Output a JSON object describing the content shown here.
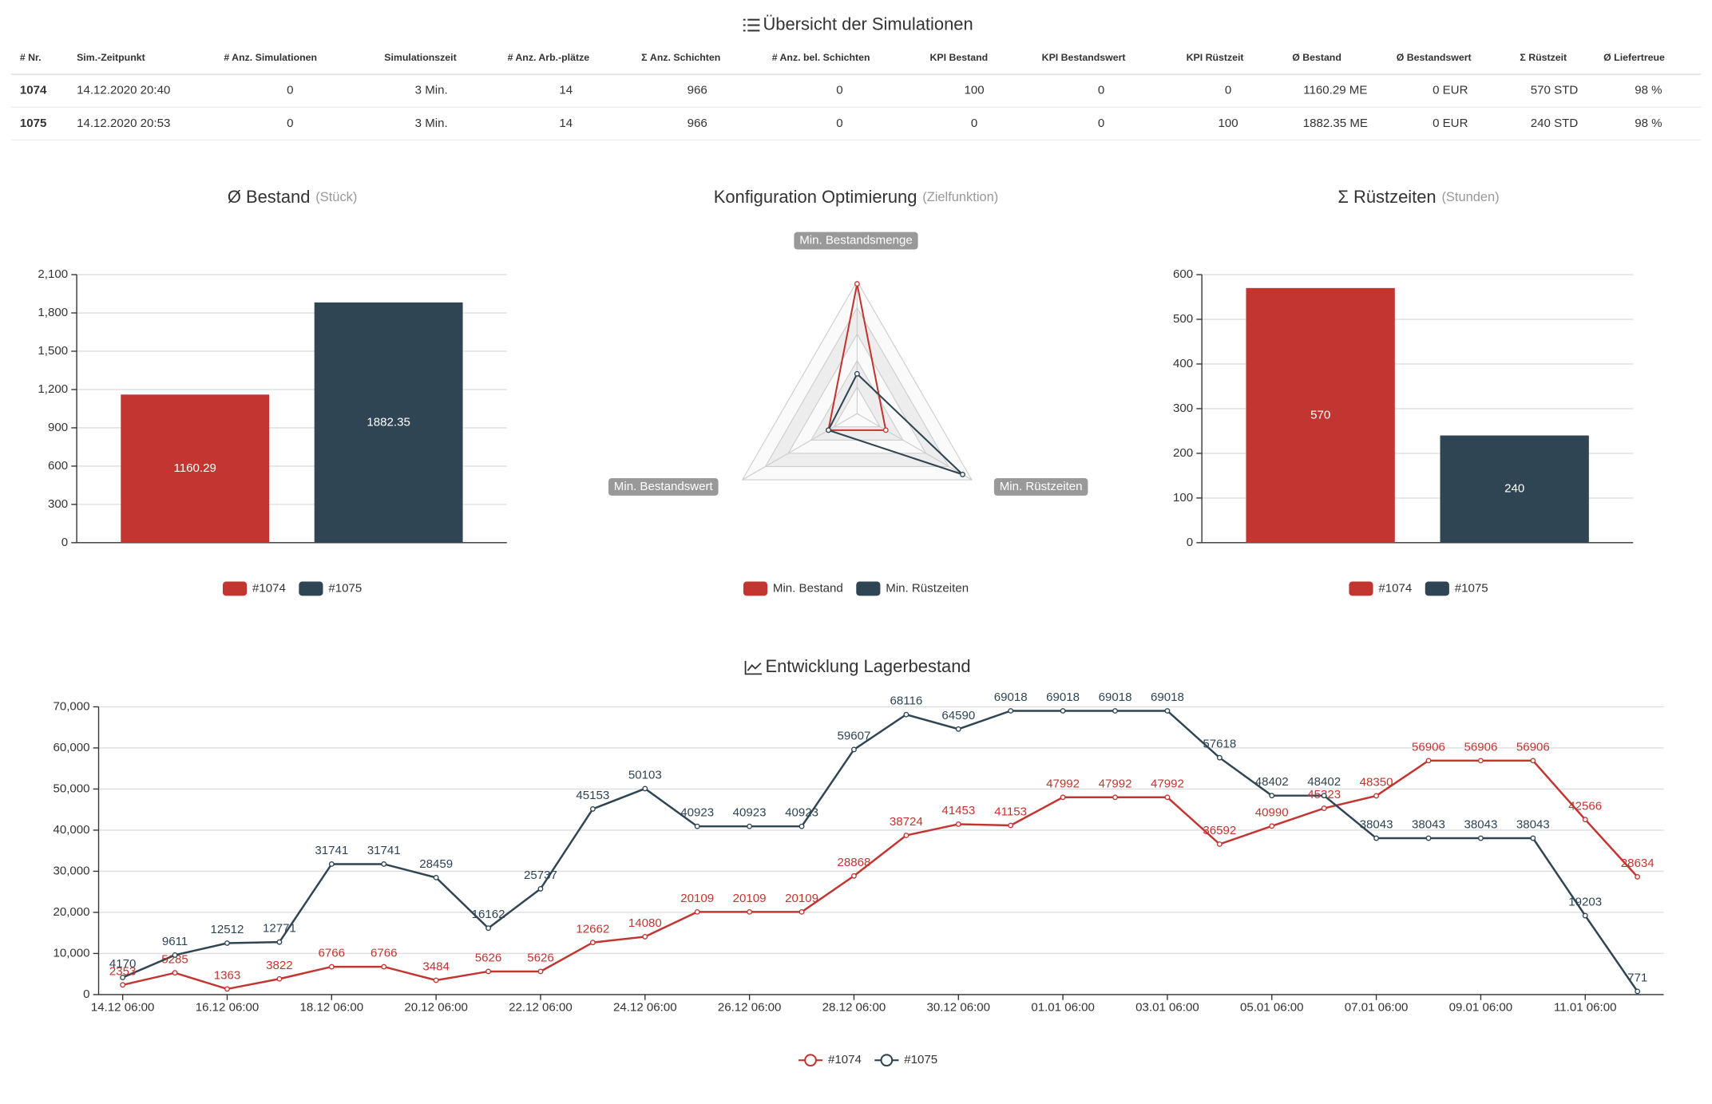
{
  "table": {
    "title": "Übersicht der Simulationen",
    "headers": [
      "# Nr.",
      "Sim.-Zeitpunkt",
      "# Anz. Simulationen",
      "Simulationszeit",
      "# Anz. Arb.-plätze",
      "Σ Anz. Schichten",
      "# Anz. bel. Schichten",
      "KPI Bestand",
      "KPI Bestandswert",
      "KPI Rüstzeit",
      "Ø Bestand",
      "Ø Bestandswert",
      "Σ Rüstzeit",
      "Ø Liefertreue"
    ],
    "rows": [
      [
        "1074",
        "14.12.2020 20:40",
        "0",
        "3 Min.",
        "14",
        "966",
        "0",
        "100",
        "0",
        "0",
        "1160.29 ME",
        "0 EUR",
        "570 STD",
        "98 %"
      ],
      [
        "1075",
        "14.12.2020 20:53",
        "0",
        "3 Min.",
        "14",
        "966",
        "0",
        "0",
        "0",
        "100",
        "1882.35 ME",
        "0 EUR",
        "240 STD",
        "98 %"
      ]
    ]
  },
  "chart_data": [
    {
      "type": "bar",
      "title": "Ø Bestand",
      "subtitle": "(Stück)",
      "categories": [
        null
      ],
      "series": [
        {
          "name": "#1074",
          "color": "#c23531",
          "values": [
            1160.29
          ]
        },
        {
          "name": "#1075",
          "color": "#2f4554",
          "values": [
            1882.35
          ]
        }
      ],
      "ylim": [
        0,
        2100
      ],
      "yticks": [
        0,
        300,
        600,
        900,
        {
          "value": 1200,
          "label": "1,200"
        },
        {
          "value": 1500,
          "label": "1,500"
        },
        {
          "value": 1800,
          "label": "1,800"
        },
        {
          "value": 2100,
          "label": "2,100"
        }
      ],
      "grid": true
    },
    {
      "type": "radar",
      "title": "Konfiguration Optimierung",
      "subtitle": "(Zielfunktion)",
      "indicators": [
        "Min. Bestandsmenge",
        "Min. Bestandswert",
        "Min. Rüstzeiten"
      ],
      "rlim": [
        0,
        100
      ],
      "series": [
        {
          "name": "Min. Bestand",
          "color": "#c23531",
          "values": [
            98,
            25,
            25
          ]
        },
        {
          "name": "Min. Rüstzeiten",
          "color": "#2f4554",
          "values": [
            30,
            25,
            92
          ]
        }
      ]
    },
    {
      "type": "bar",
      "title": "Σ Rüstzeiten",
      "subtitle": "(Stunden)",
      "categories": [
        null
      ],
      "series": [
        {
          "name": "#1074",
          "color": "#c23531",
          "values": [
            570
          ]
        },
        {
          "name": "#1075",
          "color": "#2f4554",
          "values": [
            240
          ]
        }
      ],
      "ylim": [
        0,
        600
      ],
      "yticks": [
        0,
        100,
        200,
        300,
        400,
        500,
        600
      ],
      "grid": true
    },
    {
      "type": "line",
      "title": "Entwicklung Lagerbestand",
      "categories": [
        "14.12 06:00",
        null,
        "16.12 06:00",
        null,
        "18.12 06:00",
        null,
        "20.12 06:00",
        null,
        "22.12 06:00",
        null,
        "24.12 06:00",
        null,
        "26.12 06:00",
        null,
        "28.12 06:00",
        null,
        "30.12 06:00",
        null,
        "01.01 06:00",
        null,
        "03.01 06:00",
        null,
        "05.01 06:00",
        null,
        "07.01 06:00",
        null,
        "09.01 06:00",
        null,
        "11.01 06:00",
        null
      ],
      "series": [
        {
          "name": "#1074",
          "color": "#c23531",
          "values": [
            2353,
            5285,
            1363,
            3822,
            6766,
            6766,
            3484,
            5626,
            5626,
            12662,
            14080,
            20109,
            20109,
            20109,
            28868,
            38724,
            41453,
            41153,
            47992,
            47992,
            47992,
            36592,
            40990,
            45323,
            48350,
            56906,
            56906,
            56906,
            42566,
            28634
          ]
        },
        {
          "name": "#1075",
          "color": "#2f4554",
          "values": [
            4170,
            9611,
            12512,
            12771,
            31741,
            31741,
            28459,
            16162,
            25737,
            45153,
            50103,
            40923,
            40923,
            40923,
            59607,
            68116,
            64590,
            69018,
            69018,
            69018,
            69018,
            57618,
            48402,
            48402,
            38043,
            38043,
            38043,
            38043,
            19203,
            771
          ]
        }
      ],
      "ylim": [
        0,
        70000
      ],
      "yticks": [
        0,
        {
          "value": 10000,
          "label": "10,000"
        },
        {
          "value": 20000,
          "label": "20,000"
        },
        {
          "value": 30000,
          "label": "30,000"
        },
        {
          "value": 40000,
          "label": "40,000"
        },
        {
          "value": 50000,
          "label": "50,000"
        },
        {
          "value": 60000,
          "label": "60,000"
        },
        {
          "value": 70000,
          "label": "70,000"
        }
      ],
      "grid": true
    }
  ]
}
